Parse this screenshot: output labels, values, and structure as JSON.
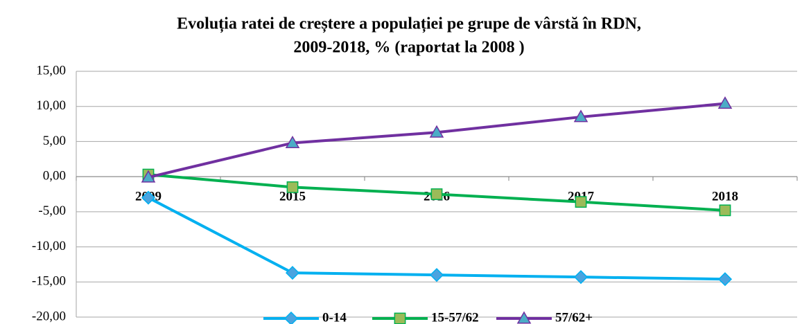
{
  "chart_data": {
    "type": "line",
    "title": [
      "Evoluția ratei de creștere a populației pe grupe de vârstă în RDN,",
      "2009-2018, % (raportat la 2008 )"
    ],
    "categories": [
      "2009",
      "2015",
      "2016",
      "2017",
      "2018"
    ],
    "series": [
      {
        "name": "0-14",
        "color": "#00b0f0",
        "marker": "diamond",
        "marker_fill": "#4aa3df",
        "values": [
          -3.0,
          -13.7,
          -14.0,
          -14.3,
          -14.6
        ]
      },
      {
        "name": "15-57/62",
        "color": "#00b050",
        "marker": "square",
        "marker_fill": "#9bbb59",
        "values": [
          0.3,
          -1.5,
          -2.5,
          -3.6,
          -4.8
        ]
      },
      {
        "name": "57/62+",
        "color": "#7030a0",
        "marker": "triangle",
        "marker_fill": "#4bacc6",
        "values": [
          -0.1,
          4.8,
          6.3,
          8.5,
          10.4
        ]
      }
    ],
    "ylim": [
      -20,
      15
    ],
    "yticks": [
      {
        "value": -20,
        "label": "-20,00"
      },
      {
        "value": -15,
        "label": "-15,00"
      },
      {
        "value": -10,
        "label": "-10,00"
      },
      {
        "value": -5,
        "label": "-5,00"
      },
      {
        "value": 0,
        "label": "0,00"
      },
      {
        "value": 5,
        "label": "5,00"
      },
      {
        "value": 10,
        "label": "10,00"
      },
      {
        "value": 15,
        "label": "15,00"
      }
    ],
    "grid": true,
    "legend": "bottom"
  }
}
